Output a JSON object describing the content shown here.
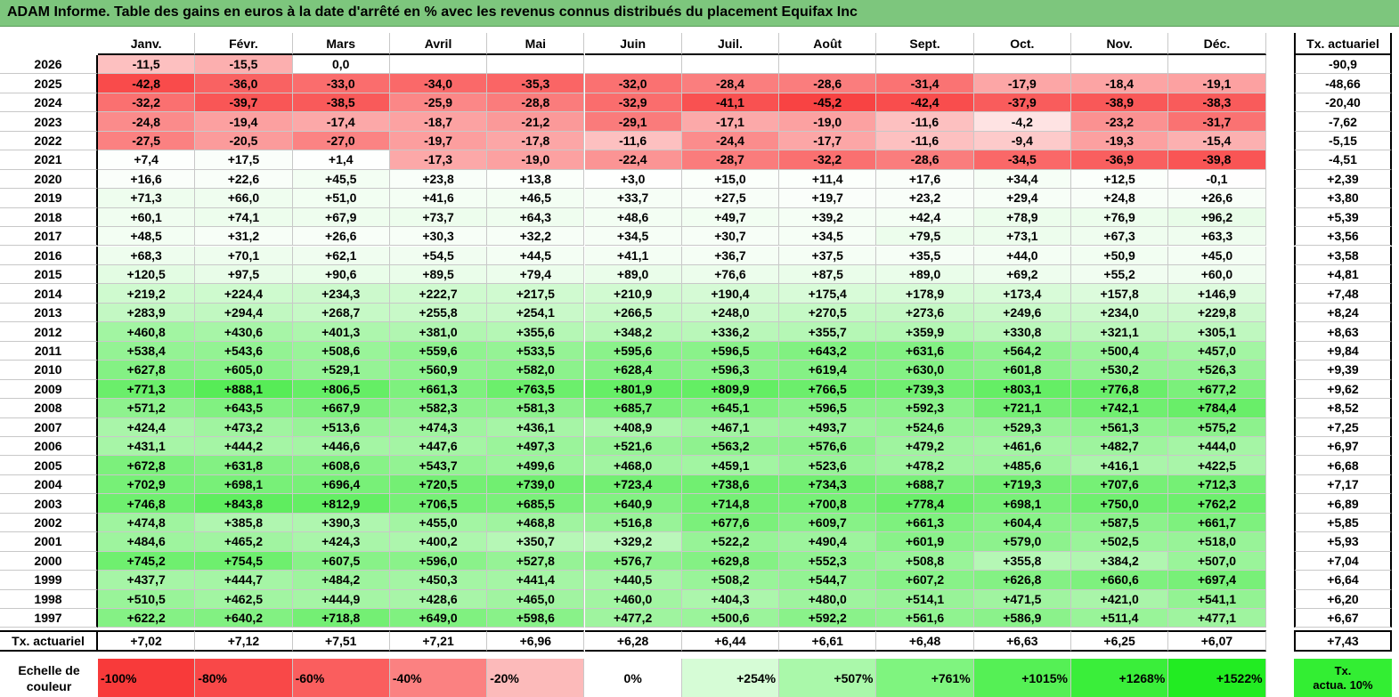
{
  "title": "ADAM Informe. Table des gains en euros à la date d'arrêté en % avec les revenus connus distribués du placement Equifax Inc",
  "months": [
    "Janv.",
    "Févr.",
    "Mars",
    "Avril",
    "Mai",
    "Juin",
    "Juil.",
    "Août",
    "Sept.",
    "Oct.",
    "Nov.",
    "Déc."
  ],
  "side_header": "Tx. actuariel",
  "rows": [
    {
      "year": "2026",
      "values": [
        "-11,5",
        "-15,5",
        "0,0",
        "",
        "",
        "",
        "",
        "",
        "",
        "",
        "",
        ""
      ],
      "rate": "-90,9"
    },
    {
      "year": "2025",
      "values": [
        "-42,8",
        "-36,0",
        "-33,0",
        "-34,0",
        "-35,3",
        "-32,0",
        "-28,4",
        "-28,6",
        "-31,4",
        "-17,9",
        "-18,4",
        "-19,1"
      ],
      "rate": "-48,66"
    },
    {
      "year": "2024",
      "values": [
        "-32,2",
        "-39,7",
        "-38,5",
        "-25,9",
        "-28,8",
        "-32,9",
        "-41,1",
        "-45,2",
        "-42,4",
        "-37,9",
        "-38,9",
        "-38,3"
      ],
      "rate": "-20,40"
    },
    {
      "year": "2023",
      "values": [
        "-24,8",
        "-19,4",
        "-17,4",
        "-18,7",
        "-21,2",
        "-29,1",
        "-17,1",
        "-19,0",
        "-11,6",
        "-4,2",
        "-23,2",
        "-31,7"
      ],
      "rate": "-7,62"
    },
    {
      "year": "2022",
      "values": [
        "-27,5",
        "-20,5",
        "-27,0",
        "-19,7",
        "-17,8",
        "-11,6",
        "-24,4",
        "-17,7",
        "-11,6",
        "-9,4",
        "-19,3",
        "-15,4"
      ],
      "rate": "-5,15"
    },
    {
      "year": "2021",
      "values": [
        "+7,4",
        "+17,5",
        "+1,4",
        "-17,3",
        "-19,0",
        "-22,4",
        "-28,7",
        "-32,2",
        "-28,6",
        "-34,5",
        "-36,9",
        "-39,8"
      ],
      "rate": "-4,51"
    },
    {
      "year": "2020",
      "values": [
        "+16,6",
        "+22,6",
        "+45,5",
        "+23,8",
        "+13,8",
        "+3,0",
        "+15,0",
        "+11,4",
        "+17,6",
        "+34,4",
        "+12,5",
        "-0,1"
      ],
      "rate": "+2,39"
    },
    {
      "year": "2019",
      "values": [
        "+71,3",
        "+66,0",
        "+51,0",
        "+41,6",
        "+46,5",
        "+33,7",
        "+27,5",
        "+19,7",
        "+23,2",
        "+29,4",
        "+24,8",
        "+26,6"
      ],
      "rate": "+3,80"
    },
    {
      "year": "2018",
      "values": [
        "+60,1",
        "+74,1",
        "+67,9",
        "+73,7",
        "+64,3",
        "+48,6",
        "+49,7",
        "+39,2",
        "+42,4",
        "+78,9",
        "+76,9",
        "+96,2"
      ],
      "rate": "+5,39"
    },
    {
      "year": "2017",
      "values": [
        "+48,5",
        "+31,2",
        "+26,6",
        "+30,3",
        "+32,2",
        "+34,5",
        "+30,7",
        "+34,5",
        "+79,5",
        "+73,1",
        "+67,3",
        "+63,3"
      ],
      "rate": "+3,56"
    },
    {
      "year": "2016",
      "values": [
        "+68,3",
        "+70,1",
        "+62,1",
        "+54,5",
        "+44,5",
        "+41,1",
        "+36,7",
        "+37,5",
        "+35,5",
        "+44,0",
        "+50,9",
        "+45,0"
      ],
      "rate": "+3,58"
    },
    {
      "year": "2015",
      "values": [
        "+120,5",
        "+97,5",
        "+90,6",
        "+89,5",
        "+79,4",
        "+89,0",
        "+76,6",
        "+87,5",
        "+89,0",
        "+69,2",
        "+55,2",
        "+60,0"
      ],
      "rate": "+4,81"
    },
    {
      "year": "2014",
      "values": [
        "+219,2",
        "+224,4",
        "+234,3",
        "+222,7",
        "+217,5",
        "+210,9",
        "+190,4",
        "+175,4",
        "+178,9",
        "+173,4",
        "+157,8",
        "+146,9"
      ],
      "rate": "+7,48"
    },
    {
      "year": "2013",
      "values": [
        "+283,9",
        "+294,4",
        "+268,7",
        "+255,8",
        "+254,1",
        "+266,5",
        "+248,0",
        "+270,5",
        "+273,6",
        "+249,6",
        "+234,0",
        "+229,8"
      ],
      "rate": "+8,24"
    },
    {
      "year": "2012",
      "values": [
        "+460,8",
        "+430,6",
        "+401,3",
        "+381,0",
        "+355,6",
        "+348,2",
        "+336,2",
        "+355,7",
        "+359,9",
        "+330,8",
        "+321,1",
        "+305,1"
      ],
      "rate": "+8,63"
    },
    {
      "year": "2011",
      "values": [
        "+538,4",
        "+543,6",
        "+508,6",
        "+559,6",
        "+533,5",
        "+595,6",
        "+596,5",
        "+643,2",
        "+631,6",
        "+564,2",
        "+500,4",
        "+457,0"
      ],
      "rate": "+9,84"
    },
    {
      "year": "2010",
      "values": [
        "+627,8",
        "+605,0",
        "+529,1",
        "+560,9",
        "+582,0",
        "+628,4",
        "+596,3",
        "+619,4",
        "+630,0",
        "+601,8",
        "+530,2",
        "+526,3"
      ],
      "rate": "+9,39"
    },
    {
      "year": "2009",
      "values": [
        "+771,3",
        "+888,1",
        "+806,5",
        "+661,3",
        "+763,5",
        "+801,9",
        "+809,9",
        "+766,5",
        "+739,3",
        "+803,1",
        "+776,8",
        "+677,2"
      ],
      "rate": "+9,62"
    },
    {
      "year": "2008",
      "values": [
        "+571,2",
        "+643,5",
        "+667,9",
        "+582,3",
        "+581,3",
        "+685,7",
        "+645,1",
        "+596,5",
        "+592,3",
        "+721,1",
        "+742,1",
        "+784,4"
      ],
      "rate": "+8,52"
    },
    {
      "year": "2007",
      "values": [
        "+424,4",
        "+473,2",
        "+513,6",
        "+474,3",
        "+436,1",
        "+408,9",
        "+467,1",
        "+493,7",
        "+524,6",
        "+529,3",
        "+561,3",
        "+575,2"
      ],
      "rate": "+7,25"
    },
    {
      "year": "2006",
      "values": [
        "+431,1",
        "+444,2",
        "+446,6",
        "+447,6",
        "+497,3",
        "+521,6",
        "+563,2",
        "+576,6",
        "+479,2",
        "+461,6",
        "+482,7",
        "+444,0"
      ],
      "rate": "+6,97"
    },
    {
      "year": "2005",
      "values": [
        "+672,8",
        "+631,8",
        "+608,6",
        "+543,7",
        "+499,6",
        "+468,0",
        "+459,1",
        "+523,6",
        "+478,2",
        "+485,6",
        "+416,1",
        "+422,5"
      ],
      "rate": "+6,68"
    },
    {
      "year": "2004",
      "values": [
        "+702,9",
        "+698,1",
        "+696,4",
        "+720,5",
        "+739,0",
        "+723,4",
        "+738,6",
        "+734,3",
        "+688,7",
        "+719,3",
        "+707,6",
        "+712,3"
      ],
      "rate": "+7,17"
    },
    {
      "year": "2003",
      "values": [
        "+746,8",
        "+843,8",
        "+812,9",
        "+706,5",
        "+685,5",
        "+640,9",
        "+714,8",
        "+700,8",
        "+778,4",
        "+698,1",
        "+750,0",
        "+762,2"
      ],
      "rate": "+6,89"
    },
    {
      "year": "2002",
      "values": [
        "+474,8",
        "+385,8",
        "+390,3",
        "+455,0",
        "+468,8",
        "+516,8",
        "+677,6",
        "+609,7",
        "+661,3",
        "+604,4",
        "+587,5",
        "+661,7"
      ],
      "rate": "+5,85"
    },
    {
      "year": "2001",
      "values": [
        "+484,6",
        "+465,2",
        "+424,3",
        "+400,2",
        "+350,7",
        "+329,2",
        "+522,2",
        "+490,4",
        "+601,9",
        "+579,0",
        "+502,5",
        "+518,0"
      ],
      "rate": "+5,93"
    },
    {
      "year": "2000",
      "values": [
        "+745,2",
        "+754,5",
        "+607,5",
        "+596,0",
        "+527,8",
        "+576,7",
        "+629,8",
        "+552,3",
        "+508,8",
        "+355,8",
        "+384,2",
        "+507,0"
      ],
      "rate": "+7,04"
    },
    {
      "year": "1999",
      "values": [
        "+437,7",
        "+444,7",
        "+484,2",
        "+450,3",
        "+441,4",
        "+440,5",
        "+508,2",
        "+544,7",
        "+607,2",
        "+626,8",
        "+660,6",
        "+697,4"
      ],
      "rate": "+6,64"
    },
    {
      "year": "1998",
      "values": [
        "+510,5",
        "+462,5",
        "+444,9",
        "+428,6",
        "+465,0",
        "+460,0",
        "+404,3",
        "+480,0",
        "+514,1",
        "+471,5",
        "+421,0",
        "+541,1"
      ],
      "rate": "+6,20"
    },
    {
      "year": "1997",
      "values": [
        "+622,2",
        "+640,2",
        "+718,8",
        "+649,0",
        "+598,6",
        "+477,2",
        "+500,6",
        "+592,2",
        "+561,6",
        "+586,9",
        "+511,4",
        "+477,1"
      ],
      "rate": "+6,67"
    }
  ],
  "footer": {
    "label": "Tx. actuariel",
    "values": [
      "+7,02",
      "+7,12",
      "+7,51",
      "+7,21",
      "+6,96",
      "+6,28",
      "+6,44",
      "+6,61",
      "+6,48",
      "+6,63",
      "+6,25",
      "+6,07"
    ],
    "total": "+7,43"
  },
  "scale": {
    "label_line1": "Echelle de",
    "label_line2": "couleur",
    "steps": [
      {
        "label": "-100%",
        "color": "#f83a3a",
        "align": "left"
      },
      {
        "label": "-80%",
        "color": "#f94848",
        "align": "left"
      },
      {
        "label": "-60%",
        "color": "#fa5e5e",
        "align": "left"
      },
      {
        "label": "-40%",
        "color": "#fb8181",
        "align": "left"
      },
      {
        "label": "-20%",
        "color": "#fcbaba",
        "align": "left"
      },
      {
        "label": "0%",
        "color": "#ffffff",
        "align": "center"
      },
      {
        "label": "+254%",
        "color": "#d6fcd6",
        "align": "right"
      },
      {
        "label": "+507%",
        "color": "#aaf8aa",
        "align": "right"
      },
      {
        "label": "+761%",
        "color": "#7ff47f",
        "align": "right"
      },
      {
        "label": "+1015%",
        "color": "#55f055",
        "align": "right"
      },
      {
        "label": "+1268%",
        "color": "#3aee3a",
        "align": "right"
      },
      {
        "label": "+1522%",
        "color": "#22ec22",
        "align": "right"
      }
    ],
    "side_line1": "Tx.",
    "side_line2": "actua. 10%"
  },
  "colors": {
    "title_bg": "#7dc67d",
    "neg_max": "#f83a3a",
    "pos_max": "#22ec22",
    "neutral": "#ffffff"
  }
}
